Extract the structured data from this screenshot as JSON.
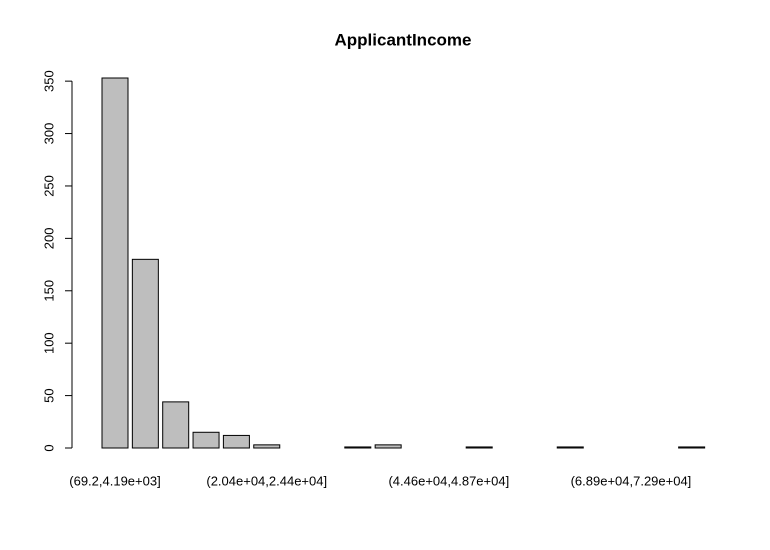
{
  "chart_data": {
    "type": "bar",
    "title": "ApplicantIncome",
    "categories": [
      "(69.2,4.19e+03]",
      null,
      null,
      null,
      null,
      "(2.04e+04,2.44e+04]",
      null,
      null,
      null,
      null,
      null,
      "(4.46e+04,4.87e+04]",
      null,
      null,
      null,
      null,
      null,
      "(6.89e+04,7.29e+04]",
      null,
      null
    ],
    "values": [
      353,
      180,
      44,
      15,
      12,
      3,
      0,
      0,
      1,
      3,
      0,
      0,
      1,
      0,
      0,
      1,
      0,
      0,
      0,
      1
    ],
    "color": "#bebebe",
    "ylim": [
      0,
      353
    ],
    "yticks": [
      0,
      50,
      100,
      150,
      200,
      250,
      300,
      350
    ],
    "grid": false
  }
}
